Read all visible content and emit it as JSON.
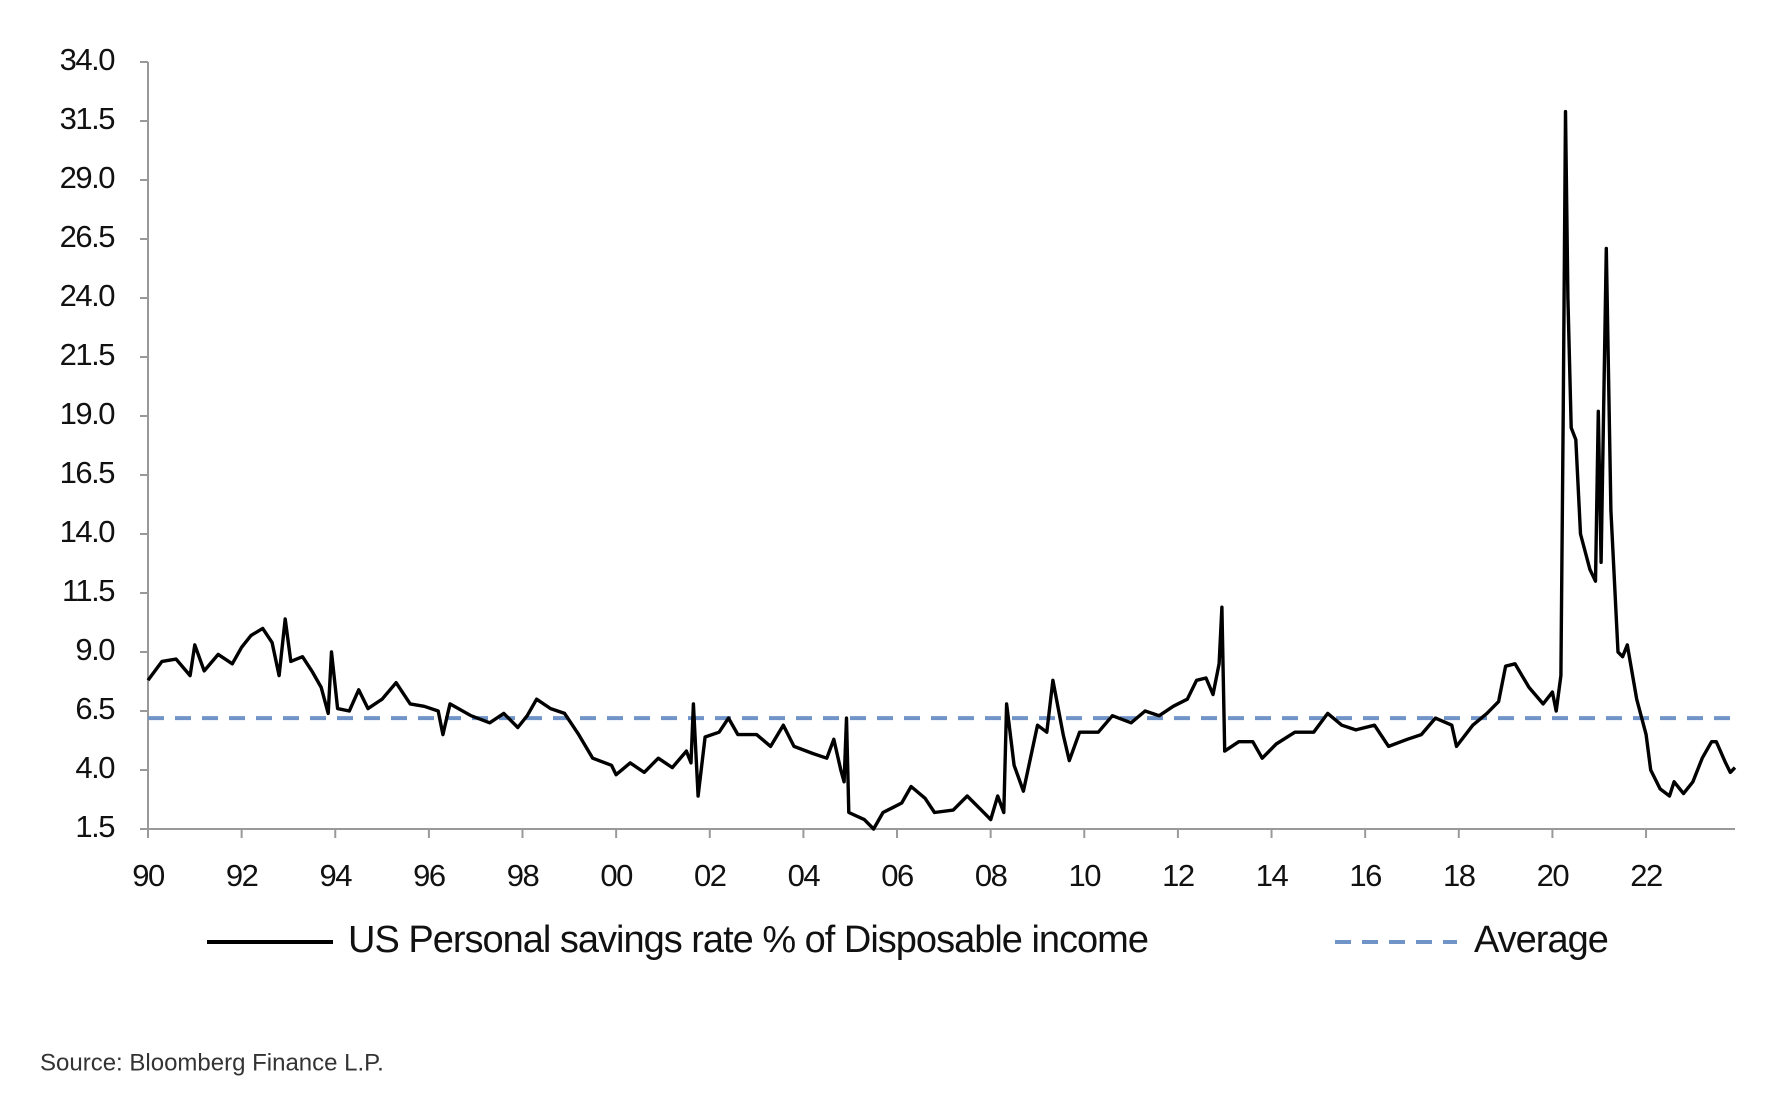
{
  "chart_data": {
    "type": "line",
    "source": "Source: Bloomberg Finance L.P.",
    "x": [
      1990.0,
      1990.3,
      1990.6,
      1990.9,
      1991.0,
      1991.2,
      1991.5,
      1991.8,
      1992.0,
      1992.2,
      1992.45,
      1992.65,
      1992.8,
      1992.93,
      1993.05,
      1993.3,
      1993.5,
      1993.7,
      1993.85,
      1993.92,
      1994.05,
      1994.3,
      1994.5,
      1994.7,
      1995.0,
      1995.3,
      1995.6,
      1995.9,
      1996.2,
      1996.3,
      1996.45,
      1996.9,
      1997.3,
      1997.6,
      1997.9,
      1998.1,
      1998.3,
      1998.6,
      1998.9,
      1999.2,
      1999.5,
      1999.9,
      2000.0,
      2000.3,
      2000.6,
      2000.9,
      2001.2,
      2001.5,
      2001.6,
      2001.65,
      2001.75,
      2001.9,
      2002.2,
      2002.4,
      2002.6,
      2003.0,
      2003.3,
      2003.57,
      2003.8,
      2004.2,
      2004.5,
      2004.65,
      2004.8,
      2004.87,
      2004.92,
      2004.97,
      2005.3,
      2005.5,
      2005.7,
      2005.9,
      2006.1,
      2006.3,
      2006.6,
      2006.8,
      2007.2,
      2007.5,
      2007.8,
      2008.0,
      2008.15,
      2008.28,
      2008.34,
      2008.5,
      2008.7,
      2009.0,
      2009.2,
      2009.33,
      2009.55,
      2009.68,
      2009.9,
      2010.3,
      2010.6,
      2011.0,
      2011.3,
      2011.6,
      2011.9,
      2012.2,
      2012.4,
      2012.6,
      2012.75,
      2012.88,
      2012.94,
      2013.0,
      2013.3,
      2013.6,
      2013.8,
      2014.1,
      2014.5,
      2014.9,
      2015.2,
      2015.5,
      2015.8,
      2016.2,
      2016.5,
      2016.9,
      2017.2,
      2017.5,
      2017.85,
      2017.95,
      2018.3,
      2018.6,
      2018.85,
      2019.0,
      2019.2,
      2019.5,
      2019.8,
      2020.0,
      2020.08,
      2020.18,
      2020.23,
      2020.28,
      2020.33,
      2020.4,
      2020.5,
      2020.6,
      2020.8,
      2020.92,
      2020.98,
      2021.04,
      2021.15,
      2021.25,
      2021.4,
      2021.5,
      2021.6,
      2021.8,
      2022.0,
      2022.1,
      2022.3,
      2022.5,
      2022.6,
      2022.8,
      2023.0,
      2023.2,
      2023.4,
      2023.5,
      2023.7,
      2023.8,
      2023.9
    ],
    "series": [
      {
        "name": "US Personal savings rate % of Disposable income",
        "color": "#000000",
        "values": [
          7.8,
          8.6,
          8.7,
          8.0,
          9.3,
          8.2,
          8.9,
          8.5,
          9.2,
          9.7,
          10.0,
          9.4,
          8.0,
          10.4,
          8.6,
          8.8,
          8.2,
          7.5,
          6.4,
          9.0,
          6.6,
          6.5,
          7.4,
          6.6,
          7.0,
          7.7,
          6.8,
          6.7,
          6.5,
          5.5,
          6.8,
          6.3,
          6.0,
          6.4,
          5.8,
          6.3,
          7.0,
          6.6,
          6.4,
          5.5,
          4.5,
          4.2,
          3.8,
          4.3,
          3.9,
          4.5,
          4.1,
          4.8,
          4.3,
          6.8,
          2.9,
          5.4,
          5.6,
          6.2,
          5.5,
          5.5,
          5.0,
          5.9,
          5.0,
          4.7,
          4.5,
          5.3,
          4.0,
          3.5,
          6.2,
          2.2,
          1.9,
          1.5,
          2.2,
          2.4,
          2.6,
          3.3,
          2.8,
          2.2,
          2.3,
          2.9,
          2.3,
          1.9,
          2.9,
          2.2,
          6.8,
          4.2,
          3.1,
          5.9,
          5.6,
          7.8,
          5.5,
          4.4,
          5.6,
          5.6,
          6.3,
          6.0,
          6.5,
          6.3,
          6.7,
          7.0,
          7.8,
          7.9,
          7.2,
          8.5,
          10.9,
          4.8,
          5.2,
          5.2,
          4.5,
          5.1,
          5.6,
          5.6,
          6.4,
          5.9,
          5.7,
          5.9,
          5.0,
          5.3,
          5.5,
          6.2,
          5.9,
          5.0,
          5.9,
          6.4,
          6.9,
          8.4,
          8.5,
          7.5,
          6.8,
          7.3,
          6.5,
          8.0,
          19.0,
          31.9,
          24.0,
          18.5,
          18.0,
          14.0,
          12.5,
          12.0,
          19.2,
          12.8,
          26.1,
          15.0,
          9.0,
          8.8,
          9.3,
          7.0,
          5.5,
          4.0,
          3.2,
          2.9,
          3.5,
          3.0,
          3.5,
          4.5,
          5.2,
          5.2,
          4.3,
          3.9,
          4.1
        ]
      }
    ],
    "average": {
      "name": "Average",
      "color": "#7094c8",
      "value": 6.2
    },
    "xlim": [
      1990,
      2023.9
    ],
    "xticks": [
      {
        "value": 1990,
        "label": "90"
      },
      {
        "value": 1992,
        "label": "92"
      },
      {
        "value": 1994,
        "label": "94"
      },
      {
        "value": 1996,
        "label": "96"
      },
      {
        "value": 1998,
        "label": "98"
      },
      {
        "value": 2000,
        "label": "00"
      },
      {
        "value": 2002,
        "label": "02"
      },
      {
        "value": 2004,
        "label": "04"
      },
      {
        "value": 2006,
        "label": "06"
      },
      {
        "value": 2008,
        "label": "08"
      },
      {
        "value": 2010,
        "label": "10"
      },
      {
        "value": 2012,
        "label": "12"
      },
      {
        "value": 2014,
        "label": "14"
      },
      {
        "value": 2016,
        "label": "16"
      },
      {
        "value": 2018,
        "label": "18"
      },
      {
        "value": 2020,
        "label": "20"
      },
      {
        "value": 2022,
        "label": "22"
      }
    ],
    "ylim": [
      1.5,
      34
    ],
    "yticks": [
      1.5,
      {
        "value": 4,
        "label": "4.0"
      },
      6.5,
      {
        "value": 9,
        "label": "9.0"
      },
      11.5,
      {
        "value": 14,
        "label": "14.0"
      },
      16.5,
      {
        "value": 19,
        "label": "19.0"
      },
      21.5,
      {
        "value": 24,
        "label": "24.0"
      },
      26.5,
      {
        "value": 29,
        "label": "29.0"
      },
      31.5,
      {
        "value": 34,
        "label": "34.0"
      }
    ],
    "grid": false
  }
}
